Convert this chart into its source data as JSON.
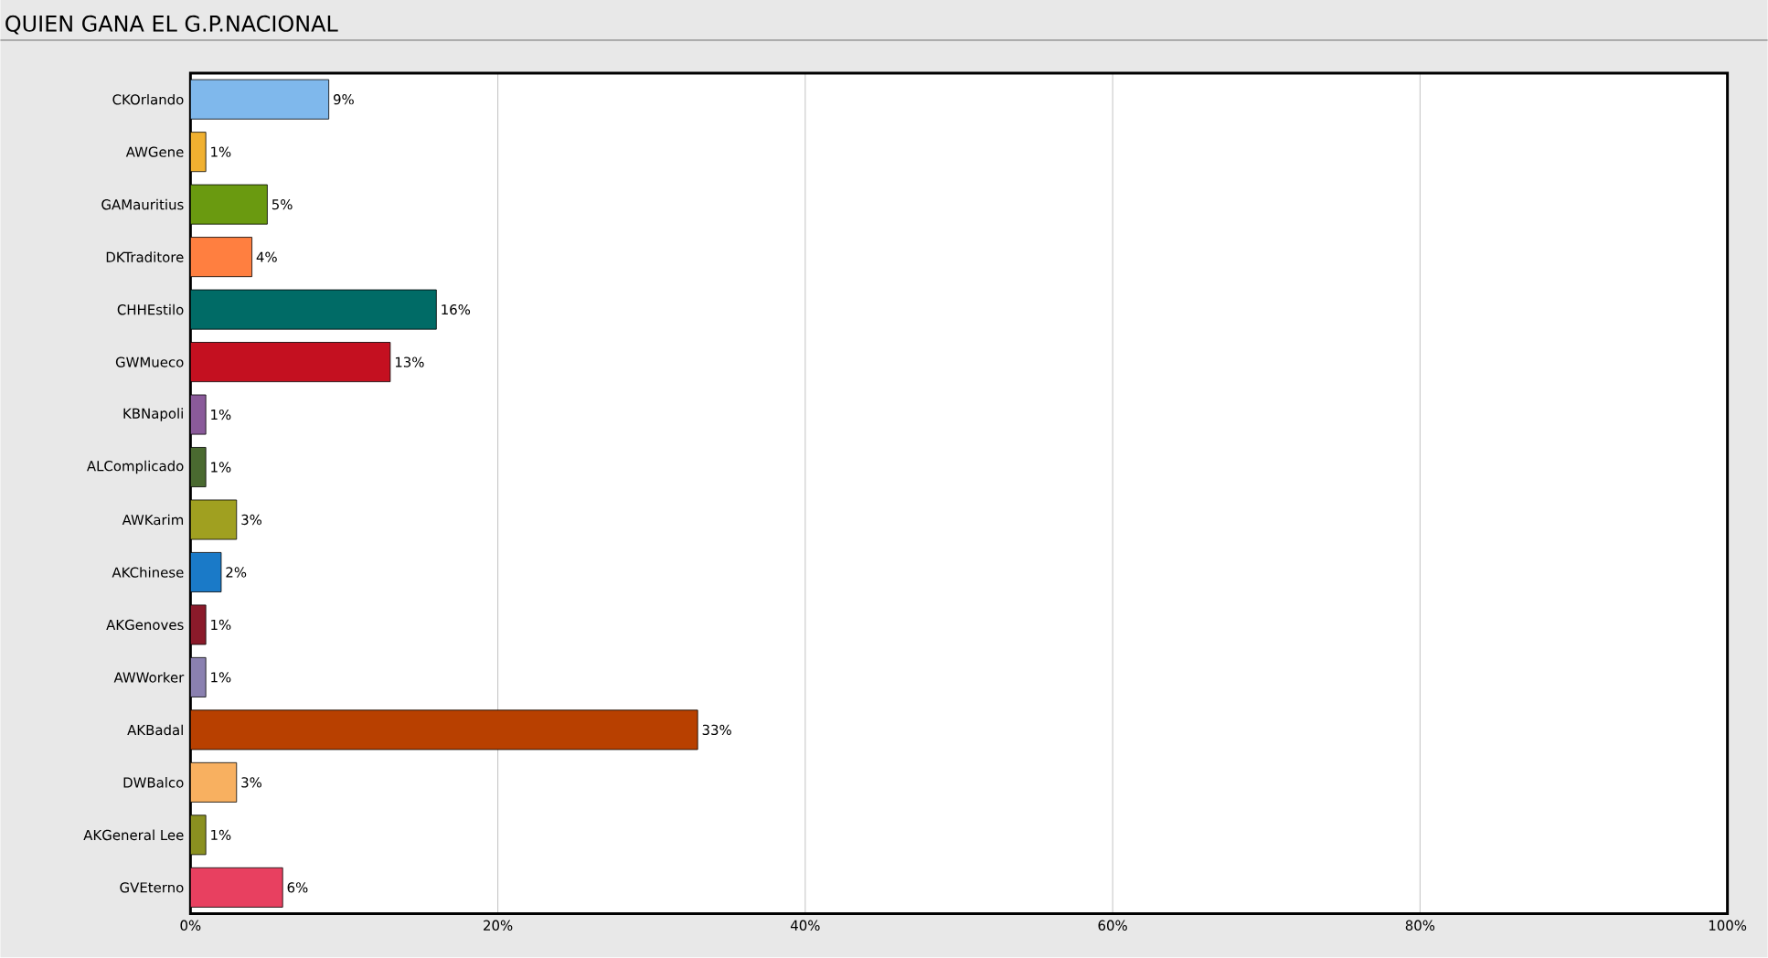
{
  "chart_data": {
    "type": "bar",
    "orientation": "horizontal",
    "title": "QUIEN GANA EL G.P.NACIONAL",
    "categories": [
      "CKOrlando",
      "AWGene",
      "GAMauritius",
      "DKTraditore",
      "CHHEstilo",
      "GWMueco",
      "KBNapoli",
      "ALComplicado",
      "AWKarim",
      "AKChinese",
      "AKGenoves",
      "AWWorker",
      "AKBadal",
      "DWBalco",
      "AKGeneral Lee",
      "GVEterno"
    ],
    "values": [
      9,
      1,
      5,
      4,
      16,
      13,
      1,
      1,
      3,
      2,
      1,
      1,
      33,
      3,
      1,
      6
    ],
    "value_labels": [
      "9%",
      "1%",
      "5%",
      "4%",
      "16%",
      "13%",
      "1%",
      "1%",
      "3%",
      "2%",
      "1%",
      "1%",
      "33%",
      "3%",
      "1%",
      "6%"
    ],
    "colors": [
      "#7fb8ec",
      "#f0b030",
      "#6a9a10",
      "#ff7f40",
      "#006b66",
      "#c41020",
      "#8a5a9a",
      "#4a6a30",
      "#a0a020",
      "#1a7ac8",
      "#8a1a2a",
      "#8a80b0",
      "#b84000",
      "#f8b060",
      "#8a9020",
      "#e84060"
    ],
    "xlim": [
      0,
      100
    ],
    "xticks": [
      {
        "value": 0,
        "label": "0%"
      },
      {
        "value": 20,
        "label": "20%"
      },
      {
        "value": 40,
        "label": "40%"
      },
      {
        "value": 60,
        "label": "60%"
      },
      {
        "value": 80,
        "label": "80%"
      },
      {
        "value": 100,
        "label": "100%"
      }
    ],
    "grid": "x"
  }
}
